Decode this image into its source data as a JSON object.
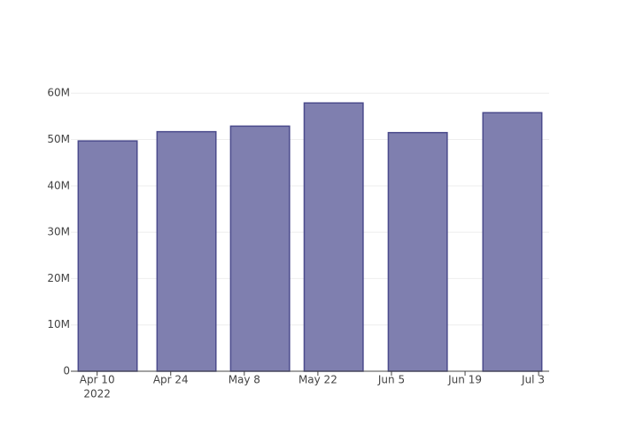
{
  "chart_data": {
    "type": "bar",
    "x": [
      "2022-04-12",
      "2022-04-27",
      "2022-05-11",
      "2022-05-25",
      "2022-06-10",
      "2022-06-28"
    ],
    "values": [
      49700000,
      51700000,
      52900000,
      57900000,
      51500000,
      55800000
    ],
    "color": "#7f7faf",
    "edge_color": "#4b4b8c",
    "xlim": [
      "2022-04-05",
      "2022-07-05"
    ],
    "xticks": [
      {
        "value": "2022-04-10",
        "label": "Apr 10"
      },
      {
        "value": "2022-04-24",
        "label": "Apr 24"
      },
      {
        "value": "2022-05-08",
        "label": "May 8"
      },
      {
        "value": "2022-05-22",
        "label": "May 22"
      },
      {
        "value": "2022-06-05",
        "label": "Jun 5"
      },
      {
        "value": "2022-06-19",
        "label": "Jun 19"
      },
      {
        "value": "2022-07-03",
        "label": "Jul 3"
      }
    ],
    "xtick_year_label": "2022",
    "ylim": [
      0,
      61000000
    ],
    "yticks": [
      {
        "value": 0,
        "label": "0"
      },
      {
        "value": 10000000,
        "label": "10M"
      },
      {
        "value": 20000000,
        "label": "20M"
      },
      {
        "value": 30000000,
        "label": "30M"
      },
      {
        "value": 40000000,
        "label": "40M"
      },
      {
        "value": 50000000,
        "label": "50M"
      },
      {
        "value": 60000000,
        "label": "60M"
      }
    ],
    "grid": true
  }
}
